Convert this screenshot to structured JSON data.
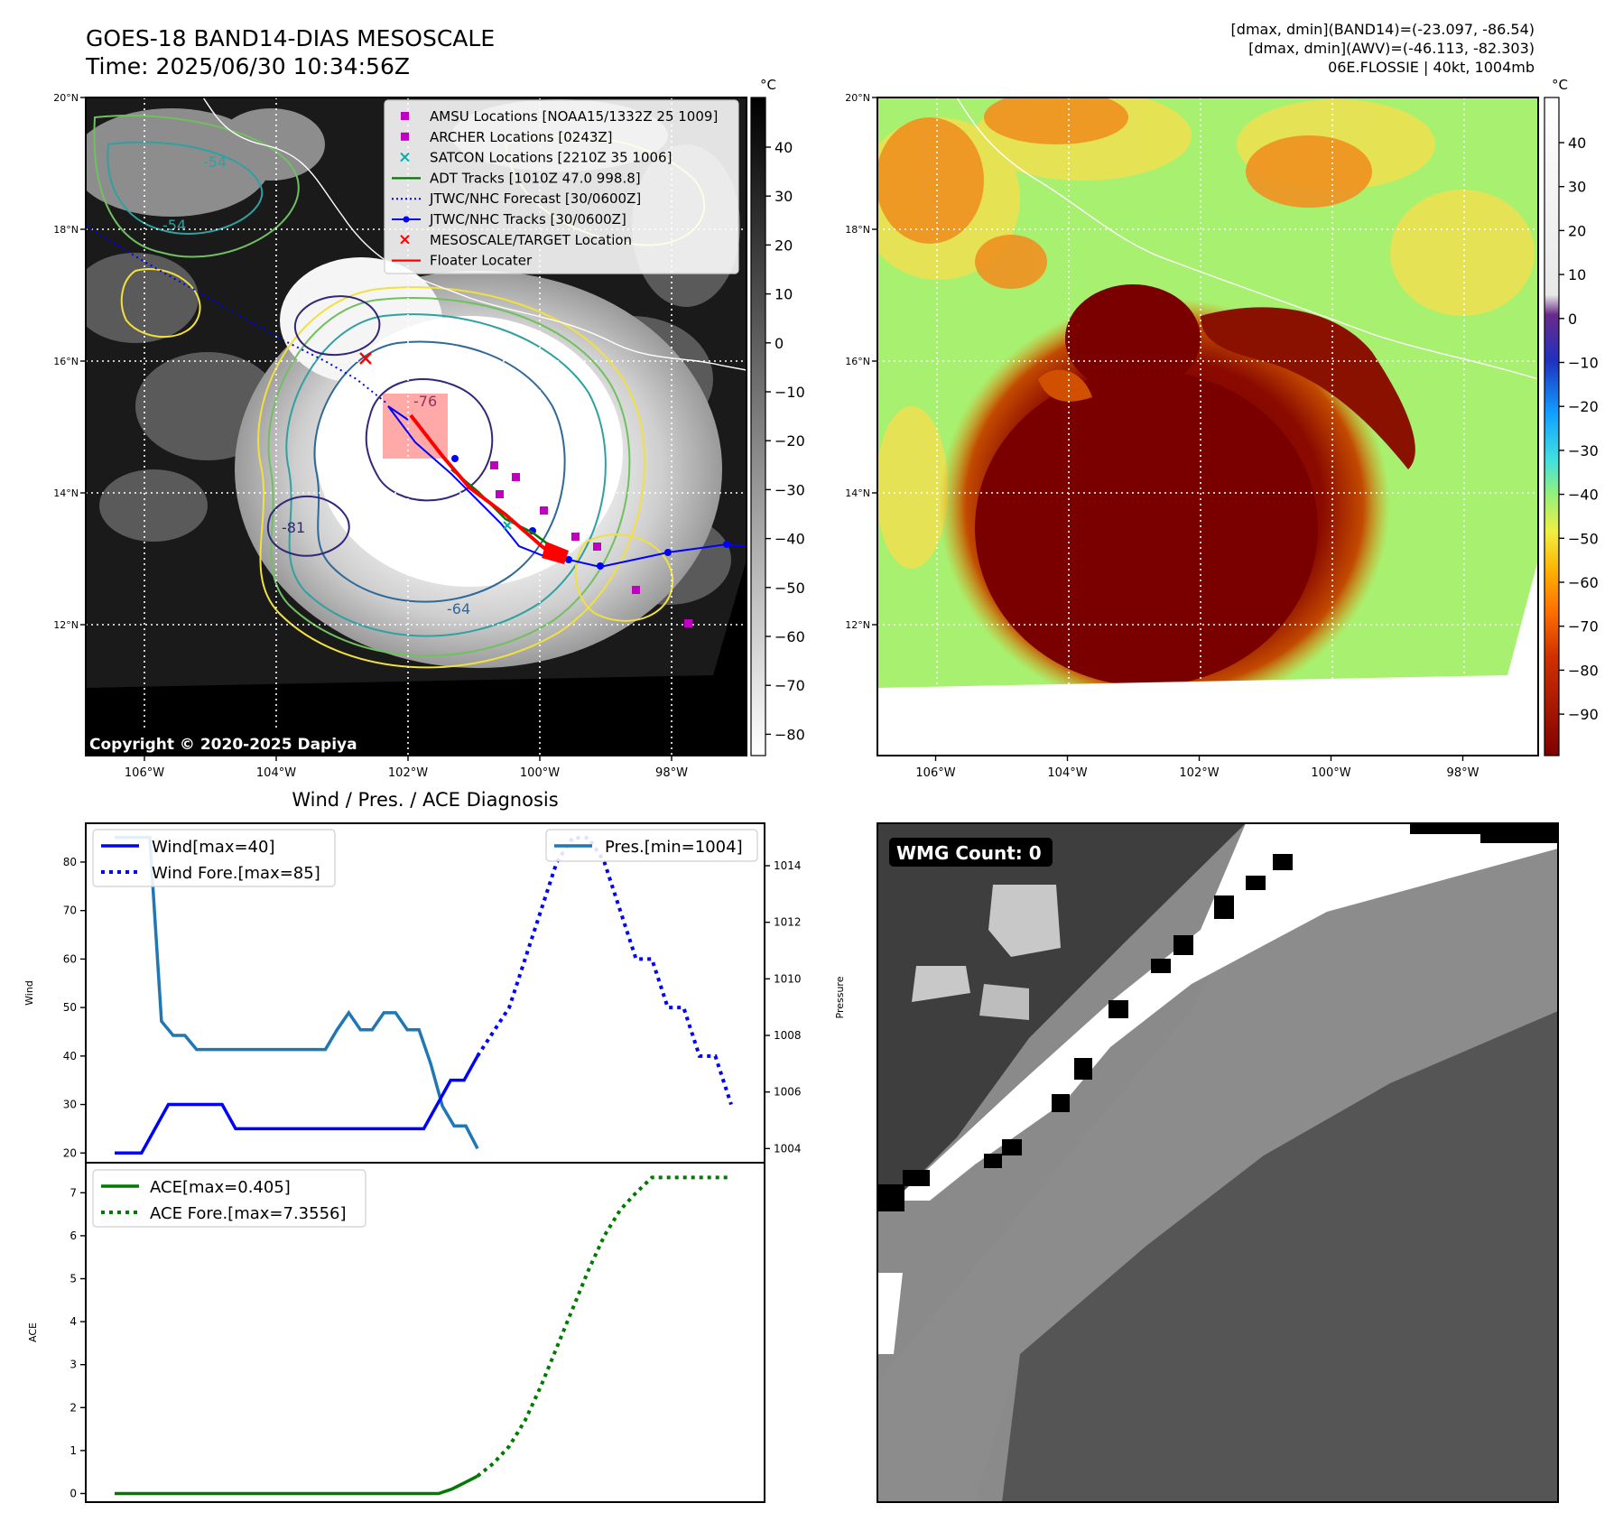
{
  "header": {
    "title_line1": "GOES-18 BAND14-DIAS MESOSCALE",
    "title_line2": "Time: 2025/06/30 10:34:56Z",
    "info_line1": "[dmax, dmin](BAND14)=(-23.097, -86.54)",
    "info_line2": "[dmax, dmin](AWV)=(-46.113, -82.303)",
    "info_line3": "06E.FLOSSIE | 40kt, 1004mb"
  },
  "map": {
    "lat_ticks": [
      "20°N",
      "18°N",
      "16°N",
      "14°N",
      "12°N"
    ],
    "lon_ticks": [
      "106°W",
      "104°W",
      "102°W",
      "100°W",
      "98°W"
    ],
    "copyright": "Copyright © 2020-2025 Dapiya",
    "contour_labels": [
      "-54",
      "-54",
      "-76",
      "-81",
      "-64"
    ],
    "legend": [
      {
        "label": "AMSU Locations [NOAA15/1332Z 25 1009]",
        "marker": "square",
        "color": "#c000c0"
      },
      {
        "label": "ARCHER Locations [0243Z]",
        "marker": "square",
        "color": "#c000c0"
      },
      {
        "label": "SATCON Locations [2210Z 35 1006]",
        "marker": "x",
        "color": "#00b0b0"
      },
      {
        "label": "ADT Tracks [1010Z 47.0 998.8]",
        "marker": "line",
        "color": "#007a00"
      },
      {
        "label": "JTWC/NHC Forecast [30/0600Z]",
        "marker": "dotted",
        "color": "#0000ff"
      },
      {
        "label": "JTWC/NHC Tracks [30/0600Z]",
        "marker": "line-dot",
        "color": "#0000ff"
      },
      {
        "label": "MESOSCALE/TARGET Location",
        "marker": "x",
        "color": "#ff0000"
      },
      {
        "label": "Floater Locater",
        "marker": "line",
        "color": "#ff0000"
      }
    ]
  },
  "colorbar_ir": {
    "unit": "°C",
    "ticks": [
      "40",
      "30",
      "20",
      "10",
      "0",
      "−10",
      "−20",
      "−30",
      "−40",
      "−50",
      "−60",
      "−70",
      "−80"
    ]
  },
  "colorbar_awv": {
    "unit": "°C",
    "ticks": [
      "40",
      "30",
      "20",
      "10",
      "0",
      "−10",
      "−20",
      "−30",
      "−40",
      "−50",
      "−60",
      "−70",
      "−80",
      "−90"
    ]
  },
  "wmg": {
    "label": "WMG Count: 0"
  },
  "colors": {
    "wind": "#0000ff",
    "pressure": "#1f77b4",
    "ace": "#007a00"
  },
  "chart_data": [
    {
      "type": "line",
      "title": "Wind / Pres. / ACE Diagnosis",
      "ylabel": "Wind",
      "ylabel_right": "Pressure",
      "ylim": [
        18,
        88
      ],
      "ylim_right": [
        1003.5,
        1015.5
      ],
      "yticks": [
        20,
        30,
        40,
        50,
        60,
        70,
        80
      ],
      "yticks_right": [
        1004,
        1006,
        1008,
        1010,
        1012,
        1014
      ],
      "series": [
        {
          "name": "Wind[max=40]",
          "style": "solid",
          "values": [
            20,
            20,
            20,
            25,
            30,
            30,
            30,
            30,
            30,
            25,
            25,
            25,
            25,
            25,
            25,
            25,
            25,
            25,
            25,
            25,
            25,
            25,
            25,
            25,
            30,
            35,
            35,
            40
          ]
        },
        {
          "name": "Wind Fore.[max=85]",
          "style": "dotted",
          "values": [
            40,
            45,
            50,
            60,
            70,
            80,
            85,
            85,
            80,
            70,
            60,
            60,
            50,
            50,
            40,
            40,
            30
          ]
        }
      ],
      "series_right": [
        {
          "name": "Pres.[min=1004]",
          "style": "solid",
          "values": [
            1015,
            1015,
            1015,
            1015,
            1008.5,
            1008,
            1008,
            1007.5,
            1007.5,
            1007.5,
            1007.5,
            1007.5,
            1007.5,
            1007.5,
            1007.5,
            1007.5,
            1007.5,
            1007.5,
            1007.5,
            1008.2,
            1008.8,
            1008.2,
            1008.2,
            1008.8,
            1008.8,
            1008.2,
            1008.2,
            1007,
            1005.5,
            1004.8,
            1004.8,
            1004
          ]
        }
      ]
    },
    {
      "type": "line",
      "ylabel": "ACE",
      "ylim": [
        -0.2,
        7.7
      ],
      "yticks": [
        0,
        1,
        2,
        3,
        4,
        5,
        6,
        7
      ],
      "series": [
        {
          "name": "ACE[max=0.405]",
          "style": "solid",
          "values": [
            0,
            0,
            0,
            0,
            0,
            0,
            0,
            0,
            0,
            0,
            0,
            0,
            0,
            0,
            0,
            0,
            0,
            0,
            0,
            0,
            0,
            0,
            0,
            0,
            0,
            0,
            0.1,
            0.25,
            0.405
          ]
        },
        {
          "name": "ACE Fore.[max=7.3556]",
          "style": "dotted",
          "values": [
            0.405,
            0.7,
            1.1,
            1.7,
            2.5,
            3.4,
            4.3,
            5.2,
            6.0,
            6.6,
            7.0,
            7.3556,
            7.3556,
            7.3556,
            7.3556,
            7.3556,
            7.3556
          ]
        }
      ]
    }
  ]
}
